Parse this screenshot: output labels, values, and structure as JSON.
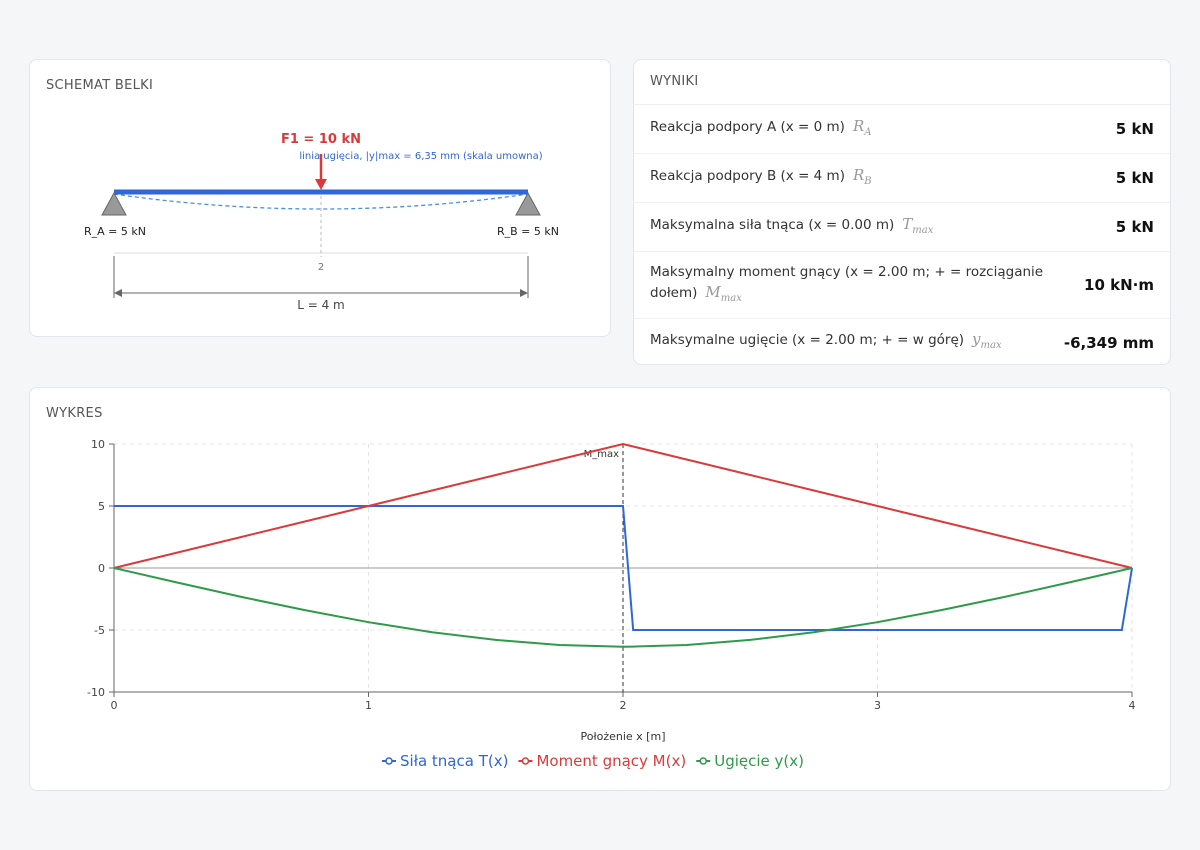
{
  "schema": {
    "title": "SCHEMAT BELKI",
    "force_label": "F1 = 10 kN",
    "deflection_note": "linia ugięcia, |y|max = 6,35 mm (skala umowna)",
    "support_a": "R_A = 5 kN",
    "support_b": "R_B = 5 kN",
    "force_position": "2",
    "span_label": "L = 4 m"
  },
  "results": {
    "title": "WYNIKI",
    "rows": [
      {
        "label": "Reakcja podpory A (x = 0 m)",
        "symbol": "R",
        "symbol_sub": "A",
        "value": "5 kN"
      },
      {
        "label": "Reakcja podpory B (x = 4 m)",
        "symbol": "R",
        "symbol_sub": "B",
        "value": "5 kN"
      },
      {
        "label": "Maksymalna siła tnąca (x = 0.00 m)",
        "symbol": "T",
        "symbol_sub": "max",
        "value": "5 kN"
      },
      {
        "label": "Maksymalny moment gnący (x = 2.00 m; + = rozciąganie dołem)",
        "symbol": "M",
        "symbol_sub": "max",
        "value": "10 kN·m"
      },
      {
        "label": "Maksymalne ugięcie (x = 2.00 m; + = w górę)",
        "symbol": "y",
        "symbol_sub": "max",
        "value": "-6,349 mm"
      }
    ]
  },
  "chart_data": {
    "type": "line",
    "title": "WYKRES",
    "x_label": "Położenie x [m]",
    "x": [
      0,
      0.25,
      0.5,
      0.75,
      1,
      1.25,
      1.5,
      1.75,
      2,
      2.04,
      2.25,
      2.5,
      2.75,
      3,
      3.25,
      3.5,
      3.75,
      3.96,
      4
    ],
    "series": [
      {
        "name": "Siła tnąca T(x)",
        "color": "#2f66d8",
        "values": [
          5,
          5,
          5,
          5,
          5,
          5,
          5,
          5,
          5,
          -5,
          -5,
          -5,
          -5,
          -5,
          -5,
          -5,
          -5,
          -5,
          0
        ]
      },
      {
        "name": "Moment gnący M(x)",
        "color": "#dc3a3a",
        "values": [
          0,
          1.25,
          2.5,
          3.75,
          5,
          6.25,
          7.5,
          8.75,
          10,
          9.8,
          8.75,
          7.5,
          6.25,
          5,
          3.75,
          2.5,
          1.25,
          0.2,
          0
        ]
      },
      {
        "name": "Ugięcie y(x)",
        "color": "#2f9a4a",
        "values": [
          0,
          -1.18,
          -2.33,
          -3.4,
          -4.37,
          -5.18,
          -5.8,
          -6.21,
          -6.35,
          -6.34,
          -6.21,
          -5.8,
          -5.18,
          -4.37,
          -3.4,
          -2.33,
          -1.18,
          -0.19,
          0
        ]
      }
    ],
    "annotation": {
      "text": "M_max",
      "x": 2
    },
    "xlim": [
      0,
      4
    ],
    "xticks": [
      0,
      1,
      2,
      3,
      4
    ],
    "ylim": [
      -10,
      10
    ],
    "yticks": [
      -10,
      -5,
      0,
      5,
      10
    ],
    "grid": true,
    "legend": "bottom"
  }
}
